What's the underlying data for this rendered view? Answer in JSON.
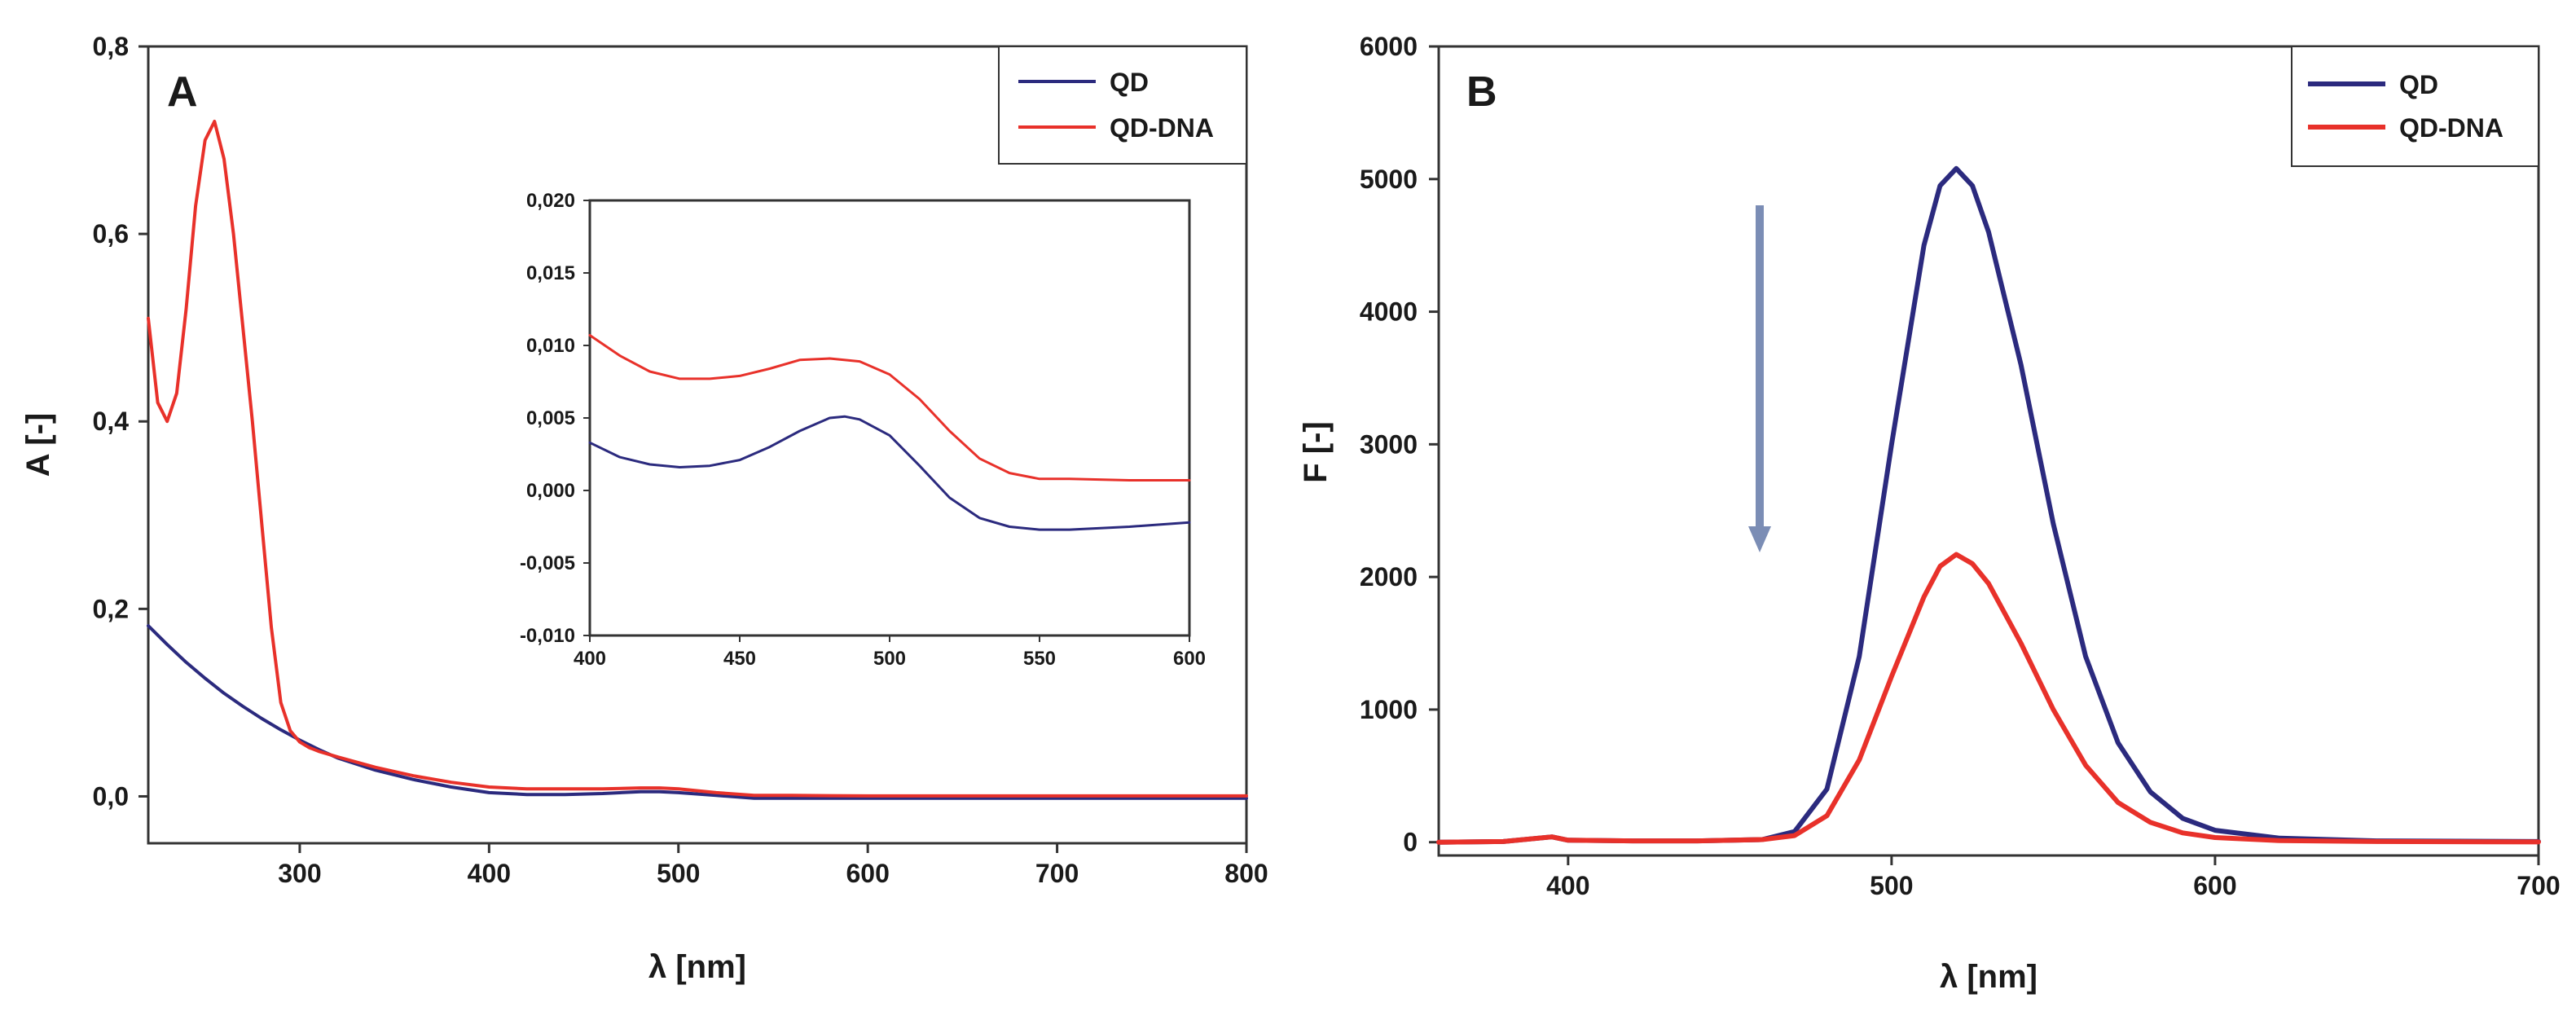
{
  "chart_data": [
    {
      "panel": "A",
      "type": "line",
      "title": "A",
      "xlabel": "λ [nm]",
      "ylabel": "A [-]",
      "xlim": [
        220,
        800
      ],
      "ylim": [
        -0.05,
        0.8
      ],
      "xticks": [
        300,
        400,
        500,
        600,
        700,
        800
      ],
      "xtick_labels": [
        "300",
        "400",
        "500",
        "600",
        "700",
        "800"
      ],
      "yticks": [
        0.0,
        0.2,
        0.4,
        0.6,
        0.8
      ],
      "ytick_labels": [
        "0,0",
        "0,2",
        "0,4",
        "0,6",
        "0,8"
      ],
      "legend_position": "top-right",
      "series": [
        {
          "name": "QD",
          "color": "#2b2a7e",
          "x": [
            220,
            230,
            240,
            250,
            260,
            270,
            280,
            290,
            300,
            310,
            320,
            340,
            360,
            380,
            400,
            420,
            440,
            460,
            480,
            490,
            500,
            520,
            540,
            560,
            600,
            650,
            700,
            750,
            800
          ],
          "y": [
            0.182,
            0.162,
            0.143,
            0.126,
            0.11,
            0.096,
            0.083,
            0.071,
            0.06,
            0.05,
            0.041,
            0.028,
            0.018,
            0.01,
            0.004,
            0.002,
            0.002,
            0.003,
            0.005,
            0.005,
            0.004,
            0.001,
            -0.002,
            -0.002,
            -0.002,
            -0.002,
            -0.002,
            -0.002,
            -0.002
          ]
        },
        {
          "name": "QD-DNA",
          "color": "#e8312a",
          "x": [
            220,
            225,
            230,
            235,
            240,
            245,
            250,
            255,
            260,
            265,
            270,
            275,
            280,
            285,
            290,
            295,
            300,
            305,
            310,
            320,
            340,
            360,
            380,
            400,
            420,
            440,
            460,
            480,
            490,
            500,
            520,
            540,
            560,
            600,
            650,
            700,
            750,
            800
          ],
          "y": [
            0.51,
            0.42,
            0.4,
            0.43,
            0.52,
            0.63,
            0.7,
            0.72,
            0.68,
            0.6,
            0.5,
            0.4,
            0.29,
            0.18,
            0.1,
            0.07,
            0.058,
            0.052,
            0.048,
            0.042,
            0.031,
            0.022,
            0.015,
            0.01,
            0.008,
            0.008,
            0.008,
            0.009,
            0.009,
            0.008,
            0.004,
            0.001,
            0.001,
            0.0005,
            0.0005,
            0.0005,
            0.0005,
            0.0005
          ]
        }
      ]
    },
    {
      "panel": "A-inset",
      "type": "line",
      "title": "",
      "xlabel": "",
      "ylabel": "",
      "xlim": [
        400,
        600
      ],
      "ylim": [
        -0.01,
        0.02
      ],
      "xticks": [
        400,
        450,
        500,
        550,
        600
      ],
      "xtick_labels": [
        "400",
        "450",
        "500",
        "550",
        "600"
      ],
      "yticks": [
        -0.01,
        -0.005,
        0.0,
        0.005,
        0.01,
        0.015,
        0.02
      ],
      "ytick_labels": [
        "-0,010",
        "-0,005",
        "0,000",
        "0,005",
        "0,010",
        "0,015",
        "0,020"
      ],
      "series": [
        {
          "name": "QD",
          "color": "#2b2a7e",
          "x": [
            400,
            410,
            420,
            430,
            440,
            450,
            460,
            470,
            480,
            485,
            490,
            500,
            510,
            520,
            530,
            540,
            550,
            560,
            580,
            600
          ],
          "y": [
            0.0033,
            0.0023,
            0.0018,
            0.0016,
            0.0017,
            0.0021,
            0.003,
            0.0041,
            0.005,
            0.0051,
            0.0049,
            0.0038,
            0.0017,
            -0.0005,
            -0.0019,
            -0.0025,
            -0.0027,
            -0.0027,
            -0.0025,
            -0.0022
          ]
        },
        {
          "name": "QD-DNA",
          "color": "#e8312a",
          "x": [
            400,
            410,
            420,
            430,
            440,
            450,
            460,
            470,
            480,
            490,
            500,
            510,
            520,
            530,
            540,
            550,
            560,
            580,
            600
          ],
          "y": [
            0.0107,
            0.0093,
            0.0082,
            0.0077,
            0.0077,
            0.0079,
            0.0084,
            0.009,
            0.0091,
            0.0089,
            0.008,
            0.0063,
            0.0041,
            0.0022,
            0.0012,
            0.0008,
            0.0008,
            0.0007,
            0.0007
          ]
        }
      ]
    },
    {
      "panel": "B",
      "type": "line",
      "title": "B",
      "xlabel": "λ [nm]",
      "ylabel": "F [-]",
      "xlim": [
        360,
        700
      ],
      "ylim": [
        -100,
        6000
      ],
      "xticks": [
        400,
        500,
        600,
        700
      ],
      "xtick_labels": [
        "400",
        "500",
        "600",
        "700"
      ],
      "yticks": [
        0,
        1000,
        2000,
        3000,
        4000,
        5000,
        6000
      ],
      "ytick_labels": [
        "0",
        "1000",
        "2000",
        "3000",
        "4000",
        "5000",
        "6000"
      ],
      "legend_position": "top-right",
      "annotation": "downward arrow indicating fluorescence quenching (QD → QD-DNA)",
      "series": [
        {
          "name": "QD",
          "color": "#2b2a7e",
          "x": [
            360,
            380,
            395,
            400,
            420,
            440,
            460,
            470,
            480,
            490,
            500,
            510,
            515,
            520,
            525,
            530,
            540,
            550,
            560,
            570,
            580,
            590,
            600,
            620,
            650,
            700
          ],
          "y": [
            0,
            5,
            40,
            15,
            10,
            10,
            20,
            80,
            400,
            1400,
            3000,
            4500,
            4950,
            5080,
            4950,
            4600,
            3600,
            2400,
            1400,
            750,
            380,
            180,
            90,
            30,
            10,
            5
          ]
        },
        {
          "name": "QD-DNA",
          "color": "#e8312a",
          "x": [
            360,
            380,
            395,
            400,
            420,
            440,
            460,
            470,
            480,
            490,
            500,
            510,
            515,
            520,
            525,
            530,
            540,
            550,
            560,
            570,
            580,
            590,
            600,
            620,
            650,
            700
          ],
          "y": [
            0,
            5,
            40,
            15,
            10,
            10,
            20,
            50,
            200,
            620,
            1250,
            1850,
            2080,
            2170,
            2100,
            1950,
            1500,
            1000,
            580,
            300,
            150,
            70,
            35,
            12,
            5,
            2
          ]
        }
      ]
    }
  ]
}
